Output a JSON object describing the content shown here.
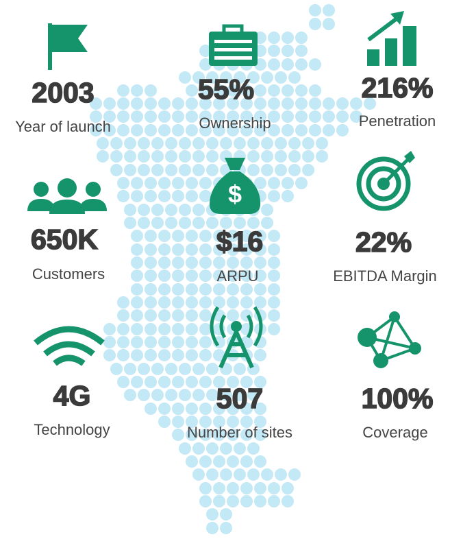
{
  "kpis": [
    {
      "value": "2003",
      "label": "Year of launch"
    },
    {
      "value": "55%",
      "label": "Ownership"
    },
    {
      "value": "216%",
      "label": "Penetration"
    },
    {
      "value": "650K",
      "label": "Customers"
    },
    {
      "value": "$16",
      "label": "ARPU"
    },
    {
      "value": "22%",
      "label": "EBITDA Margin"
    },
    {
      "value": "4G",
      "label": "Technology"
    },
    {
      "value": "507",
      "label": "Number of sites"
    },
    {
      "value": "100%",
      "label": "Coverage"
    }
  ]
}
